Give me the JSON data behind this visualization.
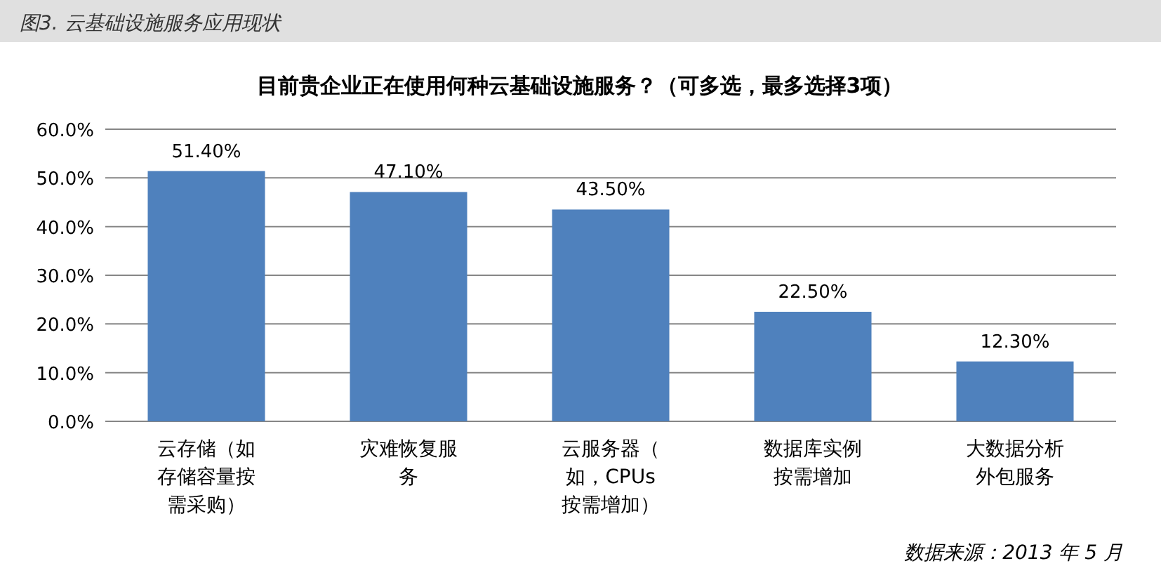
{
  "chart_data": {
    "type": "bar",
    "title": "图3. 云基础设施服务应用现状",
    "subtitle": "目前贵企业正在使用何种云基础设施服务？（可多选，最多选择3项）",
    "categories": [
      "云存储（如存储容量按需采购）",
      "灾难恢复服务",
      "云服务器（如，CPUs按需增加）",
      "数据库实例按需增加",
      "大数据分析外包服务"
    ],
    "values": [
      51.4,
      47.1,
      43.5,
      22.5,
      12.3
    ],
    "value_labels": [
      "51.40%",
      "47.10%",
      "43.50%",
      "22.50%",
      "12.30%"
    ],
    "color": "#4f81bd",
    "ylim": [
      0,
      60
    ],
    "yticks": [
      {
        "value": 0,
        "label": "0.0%"
      },
      {
        "value": 10,
        "label": "10.0%"
      },
      {
        "value": 20,
        "label": "20.0%"
      },
      {
        "value": 30,
        "label": "30.0%"
      },
      {
        "value": 40,
        "label": "40.0%"
      },
      {
        "value": 50,
        "label": "50.0%"
      },
      {
        "value": 60,
        "label": "60.0%"
      }
    ],
    "grid": "y",
    "annotations": [
      "数据来源：2013 年 5 月"
    ]
  }
}
